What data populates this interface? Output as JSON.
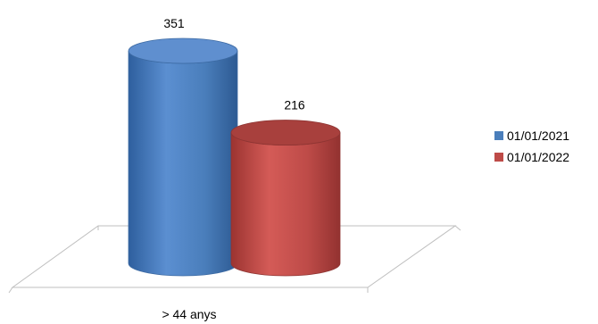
{
  "chart_data": {
    "type": "bar",
    "style": "3d-cylinder",
    "categories": [
      "> 44 anys"
    ],
    "series": [
      {
        "name": "01/01/2021",
        "values": [
          351
        ],
        "color": "#4a7ebb"
      },
      {
        "name": "01/01/2022",
        "values": [
          216
        ],
        "color": "#be4b48"
      }
    ],
    "ylim": [
      0,
      351
    ],
    "grid": false,
    "legend": "right"
  }
}
